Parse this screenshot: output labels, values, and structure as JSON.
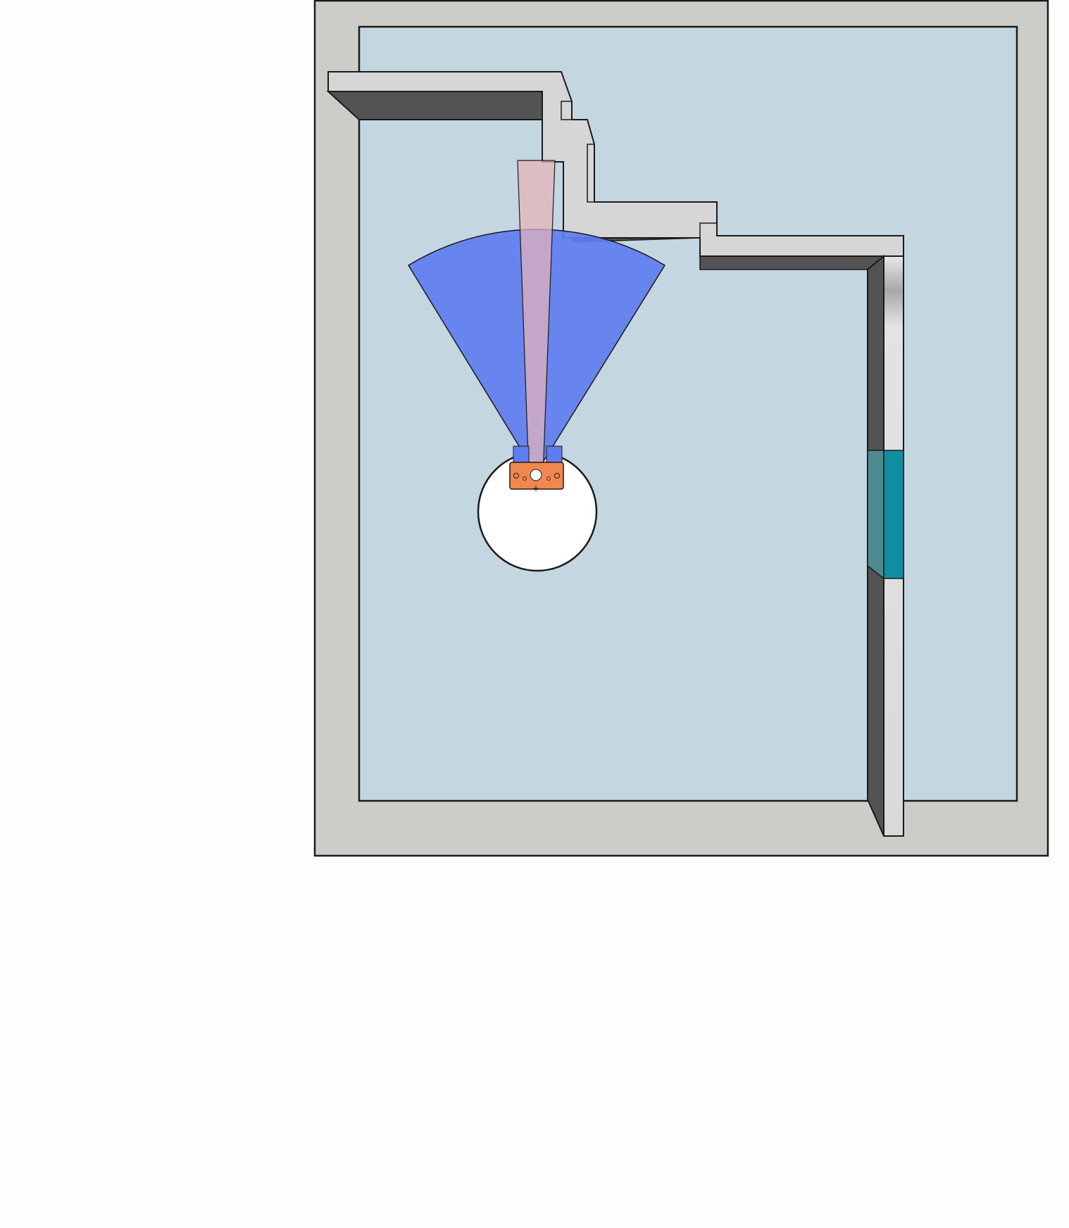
{
  "scene": {
    "colors": {
      "page_background": "#fdfdfd",
      "outer_frame": "#cccdc9",
      "floor": "#c4d6e0",
      "wall_top": "#d6d6d6",
      "wall_side": "#535353",
      "door_glass": "#0f8ea3",
      "door_glass_shade": "#4f8a91",
      "sensor_fan": "#5f7df0",
      "laser_beam": "#e6b3b8",
      "robot_body": "#f2884f",
      "robot_footprint": "#ffffff",
      "outline": "#1a1a1a"
    },
    "elements": {
      "outer_frame": "outer-frame",
      "floor": "room-floor",
      "upper_wall": "stepped-wall",
      "right_wall": "right-wall",
      "door": "glass-door",
      "sensor_fan": "sensor-field-of-view",
      "laser": "laser-beam",
      "robot": "robot",
      "footprint": "robot-footprint"
    }
  }
}
